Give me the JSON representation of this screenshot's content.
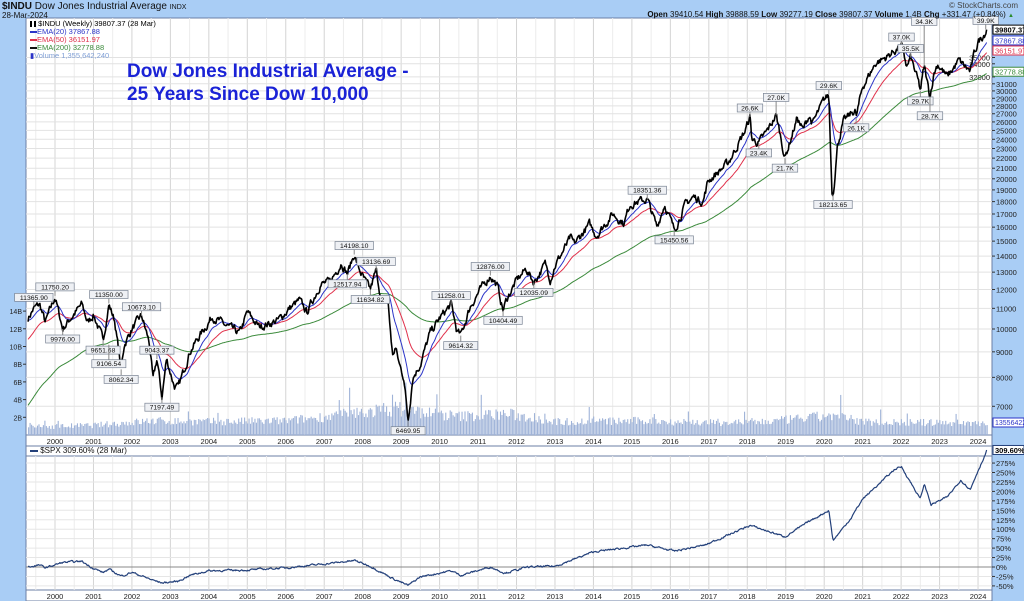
{
  "header": {
    "symbol": "$INDU",
    "name": "Dow Jones Industrial Average",
    "exchange": "INDX",
    "date": "28-Mar-2024",
    "copyright": "© StockCharts.com",
    "ohlc": [
      {
        "label": "Open",
        "value": "39410.54"
      },
      {
        "label": "High",
        "value": "39888.59"
      },
      {
        "label": "Low",
        "value": "39277.19"
      },
      {
        "label": "Close",
        "value": "39807.37"
      },
      {
        "label": "Volume",
        "value": "1.4B"
      },
      {
        "label": "Chg",
        "value": "+331.47 (+0.84%)"
      }
    ],
    "chg_arrow": "▲"
  },
  "legend": {
    "price": "$INDU (Weekly) 39807.37 (28 Mar)",
    "ema20": "EMA(20) 37867.88",
    "ema50": "EMA(50) 36151.97",
    "ema200": "EMA(200) 32778.88",
    "volume": "Volume 1,355,642,240",
    "spx": "$SPX 309.60% (28 Mar)"
  },
  "colors": {
    "price": "#000000",
    "ema20": "#2b34c8",
    "ema50": "#e0304a",
    "ema200": "#3b8a3b",
    "volume": "#9fb3d8",
    "spx": "#23407a",
    "title": "#1a22d6",
    "frame": "#a9cdf5"
  },
  "chart_title": [
    "Dow Jones Industrial Average -",
    "25 Years Since Dow 10,000"
  ],
  "chart_data": [
    {
      "type": "line",
      "title": "$INDU Weekly with EMA(20), EMA(50), EMA(200) and Volume",
      "scale": "log",
      "ylim": [
        6200,
        42000
      ],
      "xlim": [
        1999.3,
        2024.35
      ],
      "x_ticks": [
        "2000",
        "2001",
        "2002",
        "2003",
        "2004",
        "2005",
        "2006",
        "2007",
        "2008",
        "2009",
        "2010",
        "2011",
        "2012",
        "2013",
        "2014",
        "2015",
        "2016",
        "2017",
        "2018",
        "2019",
        "2020",
        "2021",
        "2022",
        "2023",
        "2024"
      ],
      "y_ticks": [
        "7000",
        "8000",
        "9000",
        "10000",
        "11000",
        "12000",
        "13000",
        "14000",
        "15000",
        "16000",
        "17000",
        "18000",
        "19000",
        "20000",
        "21000",
        "22000",
        "23000",
        "24000",
        "25000",
        "26000",
        "27000",
        "28000",
        "29000",
        "30000",
        "31000",
        "32000",
        "34000",
        "35000"
      ],
      "volume_ticks": [
        "2B",
        "4B",
        "6B",
        "8B",
        "10B",
        "12B",
        "14B"
      ],
      "right_markers": [
        {
          "label": "39807.37",
          "value": 39807.37,
          "series": "price"
        },
        {
          "label": "37867.88",
          "value": 37867.88,
          "series": "ema20"
        },
        {
          "label": "36151.97",
          "value": 36151.97,
          "series": "ema50"
        },
        {
          "label": "32778.88",
          "value": 32778.88,
          "series": "ema200"
        }
      ],
      "volume_marker": "1355642240",
      "price_anchors": [
        [
          1999.3,
          10500
        ],
        [
          1999.45,
          11000
        ],
        [
          1999.6,
          11200
        ],
        [
          1999.75,
          10300
        ],
        [
          2000.0,
          11600
        ],
        [
          2000.2,
          10000
        ],
        [
          2000.4,
          10500
        ],
        [
          2000.7,
          11200
        ],
        [
          2000.85,
          10300
        ],
        [
          2001.0,
          10700
        ],
        [
          2001.25,
          9500
        ],
        [
          2001.4,
          11200
        ],
        [
          2001.55,
          10400
        ],
        [
          2001.72,
          8300
        ],
        [
          2001.8,
          9300
        ],
        [
          2002.0,
          10000
        ],
        [
          2002.25,
          10630
        ],
        [
          2002.45,
          9400
        ],
        [
          2002.55,
          7900
        ],
        [
          2002.65,
          8700
        ],
        [
          2002.78,
          7300
        ],
        [
          2002.9,
          8700
        ],
        [
          2003.1,
          7700
        ],
        [
          2003.2,
          7600
        ],
        [
          2003.5,
          9000
        ],
        [
          2003.8,
          9800
        ],
        [
          2004.1,
          10600
        ],
        [
          2004.4,
          10200
        ],
        [
          2004.8,
          9800
        ],
        [
          2005.0,
          10800
        ],
        [
          2005.3,
          10100
        ],
        [
          2005.8,
          10400
        ],
        [
          2006.1,
          11000
        ],
        [
          2006.35,
          11400
        ],
        [
          2006.55,
          10800
        ],
        [
          2006.9,
          12300
        ],
        [
          2007.15,
          12400
        ],
        [
          2007.45,
          13600
        ],
        [
          2007.6,
          12900
        ],
        [
          2007.78,
          14100
        ],
        [
          2007.9,
          13200
        ],
        [
          2008.1,
          12300
        ],
        [
          2008.2,
          12000
        ],
        [
          2008.35,
          13100
        ],
        [
          2008.5,
          11300
        ],
        [
          2008.65,
          11500
        ],
        [
          2008.78,
          8800
        ],
        [
          2008.85,
          9200
        ],
        [
          2008.95,
          8500
        ],
        [
          2009.07,
          8000
        ],
        [
          2009.18,
          6550
        ],
        [
          2009.3,
          8000
        ],
        [
          2009.5,
          8500
        ],
        [
          2009.75,
          9800
        ],
        [
          2010.0,
          10500
        ],
        [
          2010.3,
          11200
        ],
        [
          2010.45,
          9900
        ],
        [
          2010.55,
          9700
        ],
        [
          2010.8,
          11100
        ],
        [
          2011.0,
          11800
        ],
        [
          2011.32,
          12800
        ],
        [
          2011.5,
          12200
        ],
        [
          2011.65,
          10900
        ],
        [
          2011.75,
          11500
        ],
        [
          2012.0,
          12500
        ],
        [
          2012.25,
          13200
        ],
        [
          2012.45,
          12400
        ],
        [
          2012.75,
          13500
        ],
        [
          2012.88,
          12600
        ],
        [
          2013.0,
          13400
        ],
        [
          2013.4,
          15200
        ],
        [
          2013.5,
          14800
        ],
        [
          2013.9,
          16200
        ],
        [
          2014.08,
          15400
        ],
        [
          2014.5,
          17000
        ],
        [
          2014.8,
          16300
        ],
        [
          2014.95,
          17800
        ],
        [
          2015.4,
          18200
        ],
        [
          2015.65,
          16000
        ],
        [
          2015.85,
          17800
        ],
        [
          2016.1,
          15800
        ],
        [
          2016.4,
          17800
        ],
        [
          2016.6,
          18400
        ],
        [
          2016.85,
          18000
        ],
        [
          2016.98,
          19800
        ],
        [
          2017.5,
          21500
        ],
        [
          2017.95,
          25000
        ],
        [
          2018.07,
          26600
        ],
        [
          2018.12,
          24000
        ],
        [
          2018.3,
          23600
        ],
        [
          2018.5,
          24800
        ],
        [
          2018.75,
          26800
        ],
        [
          2018.85,
          24700
        ],
        [
          2018.98,
          22000
        ],
        [
          2019.3,
          26500
        ],
        [
          2019.45,
          25000
        ],
        [
          2019.6,
          26800
        ],
        [
          2019.7,
          25800
        ],
        [
          2020.0,
          28800
        ],
        [
          2020.12,
          29500
        ],
        [
          2020.2,
          19000
        ],
        [
          2020.23,
          18600
        ],
        [
          2020.35,
          23500
        ],
        [
          2020.5,
          26000
        ],
        [
          2020.8,
          27500
        ],
        [
          2020.83,
          26500
        ],
        [
          2021.0,
          30600
        ],
        [
          2021.35,
          34200
        ],
        [
          2021.6,
          35000
        ],
        [
          2021.85,
          36200
        ],
        [
          2022.01,
          36900
        ],
        [
          2022.15,
          33500
        ],
        [
          2022.25,
          35000
        ],
        [
          2022.45,
          31200
        ],
        [
          2022.5,
          30000
        ],
        [
          2022.6,
          33600
        ],
        [
          2022.75,
          29200
        ],
        [
          2022.85,
          32500
        ],
        [
          2022.95,
          34000
        ],
        [
          2023.2,
          32000
        ],
        [
          2023.5,
          34500
        ],
        [
          2023.8,
          32800
        ],
        [
          2023.9,
          35500
        ],
        [
          2024.0,
          37600
        ],
        [
          2024.24,
          39807.37
        ]
      ],
      "annotations": [
        {
          "label": "11365.90",
          "x": 1999.45,
          "value": 11100,
          "pos": "above"
        },
        {
          "label": "11750.20",
          "x": 2000.0,
          "value": 11650,
          "pos": "above"
        },
        {
          "label": "9976.00",
          "x": 2000.2,
          "value": 10000,
          "pos": "below"
        },
        {
          "label": "11350.00",
          "x": 2001.4,
          "value": 11250,
          "pos": "above"
        },
        {
          "label": "9651.68",
          "x": 2001.25,
          "value": 9500,
          "pos": "below"
        },
        {
          "label": "9106.54",
          "x": 2001.4,
          "value": 9300,
          "pos": "below"
        },
        {
          "label": "8062.34",
          "x": 2001.72,
          "value": 8300,
          "pos": "below"
        },
        {
          "label": "10673.10",
          "x": 2002.25,
          "value": 10630,
          "pos": "above"
        },
        {
          "label": "9043.37",
          "x": 2002.65,
          "value": 8700,
          "pos": "above"
        },
        {
          "label": "7197.49",
          "x": 2002.78,
          "value": 7300,
          "pos": "below"
        },
        {
          "label": "14198.10",
          "x": 2007.78,
          "value": 14100,
          "pos": "above"
        },
        {
          "label": "13136.69",
          "x": 2008.35,
          "value": 13100,
          "pos": "above"
        },
        {
          "label": "12517.94",
          "x": 2007.6,
          "value": 12900,
          "pos": "below"
        },
        {
          "label": "11634.82",
          "x": 2008.2,
          "value": 12000,
          "pos": "below"
        },
        {
          "label": "6469.95",
          "x": 2009.18,
          "value": 6550,
          "pos": "below"
        },
        {
          "label": "11258.01",
          "x": 2010.3,
          "value": 11200,
          "pos": "above"
        },
        {
          "label": "9614.32",
          "x": 2010.55,
          "value": 9700,
          "pos": "below"
        },
        {
          "label": "12876.00",
          "x": 2011.32,
          "value": 12800,
          "pos": "above"
        },
        {
          "label": "10404.49",
          "x": 2011.65,
          "value": 10900,
          "pos": "below"
        },
        {
          "label": "12035.09",
          "x": 2012.45,
          "value": 12400,
          "pos": "below"
        },
        {
          "label": "18351.36",
          "x": 2015.4,
          "value": 18200,
          "pos": "above"
        },
        {
          "label": "15450.56",
          "x": 2016.1,
          "value": 15800,
          "pos": "below"
        },
        {
          "label": "26.6K",
          "x": 2018.07,
          "value": 26600,
          "pos": "above"
        },
        {
          "label": "23.4K",
          "x": 2018.3,
          "value": 23600,
          "pos": "below"
        },
        {
          "label": "27.0K",
          "x": 2018.75,
          "value": 26800,
          "pos": "above"
        },
        {
          "label": "21.7K",
          "x": 2018.98,
          "value": 22000,
          "pos": "below"
        },
        {
          "label": "29.6K",
          "x": 2020.12,
          "value": 29500,
          "pos": "above"
        },
        {
          "label": "18213.65",
          "x": 2020.23,
          "value": 18600,
          "pos": "below"
        },
        {
          "label": "26.1K",
          "x": 2020.83,
          "value": 26500,
          "pos": "below"
        },
        {
          "label": "37.0K",
          "x": 2022.01,
          "value": 36900,
          "pos": "above"
        },
        {
          "label": "35.5K",
          "x": 2022.25,
          "value": 35000,
          "pos": "above"
        },
        {
          "label": "34.3K",
          "x": 2022.6,
          "value": 33600,
          "pos": "above"
        },
        {
          "label": "29.7K",
          "x": 2022.5,
          "value": 30000,
          "pos": "below"
        },
        {
          "label": "28.7K",
          "x": 2022.75,
          "value": 29200,
          "pos": "below"
        },
        {
          "label": "39.9K",
          "x": 2024.2,
          "value": 39850,
          "pos": "above"
        }
      ],
      "volume_anchors_billions": [
        [
          1999.3,
          0.9
        ],
        [
          2001.0,
          1.1
        ],
        [
          2002.5,
          1.6
        ],
        [
          2004.0,
          1.5
        ],
        [
          2006.0,
          1.6
        ],
        [
          2007.5,
          2.3
        ],
        [
          2008.8,
          3.0
        ],
        [
          2009.5,
          2.6
        ],
        [
          2010.5,
          2.1
        ],
        [
          2011.7,
          2.4
        ],
        [
          2013.0,
          1.5
        ],
        [
          2015.5,
          1.6
        ],
        [
          2017.0,
          1.4
        ],
        [
          2018.5,
          1.5
        ],
        [
          2020.2,
          2.2
        ],
        [
          2021.0,
          1.5
        ],
        [
          2022.5,
          1.4
        ],
        [
          2024.24,
          1.36
        ]
      ]
    },
    {
      "type": "line",
      "title": "$SPX 309.60% (28 Mar)",
      "ylabel": "% change",
      "ylim": [
        -60,
        320
      ],
      "y_ticks": [
        "275%",
        "250%",
        "225%",
        "200%",
        "175%",
        "150%",
        "125%",
        "100%",
        "75%",
        "50%",
        "25%",
        "0%",
        "-25%",
        "-50%"
      ],
      "last_label": "309.60%",
      "anchors": [
        [
          1999.3,
          0
        ],
        [
          1999.6,
          5
        ],
        [
          1999.75,
          -2
        ],
        [
          2000.2,
          12
        ],
        [
          2000.7,
          15
        ],
        [
          2000.9,
          2
        ],
        [
          2001.25,
          -15
        ],
        [
          2001.4,
          -6
        ],
        [
          2001.72,
          -24
        ],
        [
          2002.0,
          -14
        ],
        [
          2002.55,
          -35
        ],
        [
          2002.78,
          -42
        ],
        [
          2003.2,
          -38
        ],
        [
          2003.5,
          -22
        ],
        [
          2004.0,
          -10
        ],
        [
          2005.0,
          -8
        ],
        [
          2006.0,
          -2
        ],
        [
          2007.0,
          8
        ],
        [
          2007.8,
          17
        ],
        [
          2008.2,
          2
        ],
        [
          2008.78,
          -30
        ],
        [
          2009.18,
          -49
        ],
        [
          2009.5,
          -26
        ],
        [
          2010.3,
          -10
        ],
        [
          2010.55,
          -22
        ],
        [
          2011.32,
          0
        ],
        [
          2011.7,
          -16
        ],
        [
          2012.3,
          0
        ],
        [
          2013.0,
          2
        ],
        [
          2014.0,
          40
        ],
        [
          2015.4,
          58
        ],
        [
          2016.1,
          42
        ],
        [
          2016.9,
          58
        ],
        [
          2018.07,
          110
        ],
        [
          2018.98,
          80
        ],
        [
          2019.6,
          120
        ],
        [
          2020.12,
          150
        ],
        [
          2020.23,
          70
        ],
        [
          2020.7,
          130
        ],
        [
          2021.0,
          180
        ],
        [
          2021.85,
          260
        ],
        [
          2022.01,
          265
        ],
        [
          2022.5,
          180
        ],
        [
          2022.6,
          220
        ],
        [
          2022.78,
          165
        ],
        [
          2023.2,
          185
        ],
        [
          2023.55,
          230
        ],
        [
          2023.8,
          205
        ],
        [
          2024.0,
          255
        ],
        [
          2024.24,
          309.6
        ]
      ]
    }
  ]
}
